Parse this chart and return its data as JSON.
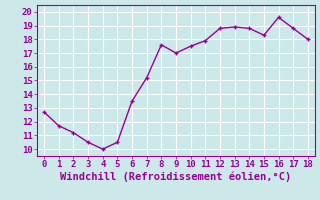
{
  "x": [
    0,
    1,
    2,
    3,
    4,
    5,
    6,
    7,
    8,
    9,
    10,
    11,
    12,
    13,
    14,
    15,
    16,
    17,
    18
  ],
  "y": [
    12.7,
    11.7,
    11.2,
    10.5,
    10.0,
    10.5,
    13.5,
    15.2,
    17.6,
    17.0,
    17.5,
    17.9,
    18.8,
    18.9,
    18.8,
    18.3,
    19.6,
    18.8,
    18.0
  ],
  "line_color": "#990099",
  "marker": "+",
  "bg_color": "#cce8e8",
  "grid_color": "#ffffff",
  "xlabel": "Windchill (Refroidissement éolien,°C)",
  "xlim": [
    -0.5,
    18.5
  ],
  "ylim": [
    9.5,
    20.5
  ],
  "yticks": [
    10,
    11,
    12,
    13,
    14,
    15,
    16,
    17,
    18,
    19,
    20
  ],
  "xticks": [
    0,
    1,
    2,
    3,
    4,
    5,
    6,
    7,
    8,
    9,
    10,
    11,
    12,
    13,
    14,
    15,
    16,
    17,
    18
  ],
  "tick_color": "#990099",
  "xlabel_color": "#990099",
  "xlabel_fontsize": 7.5,
  "tick_fontsize": 6.5,
  "spine_color": "#990099",
  "line_width": 1.0,
  "marker_size": 3.5
}
